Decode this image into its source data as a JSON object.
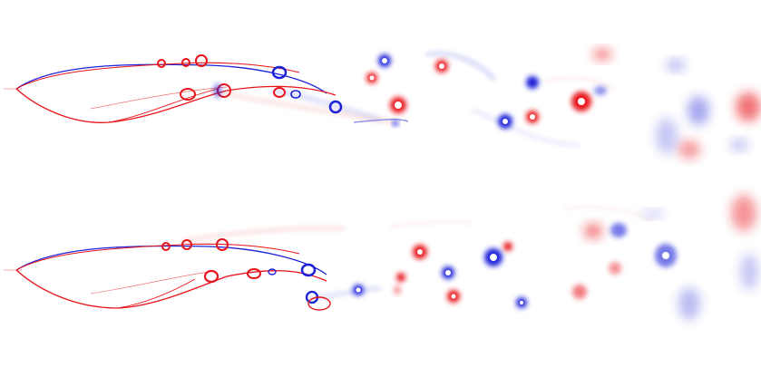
{
  "figure": {
    "panels": [
      {
        "id": "panel-top"
      },
      {
        "id": "panel-bottom"
      }
    ],
    "colors": {
      "positive": "#e8141b",
      "negative": "#1b22d8",
      "background": "#ffffff"
    }
  }
}
